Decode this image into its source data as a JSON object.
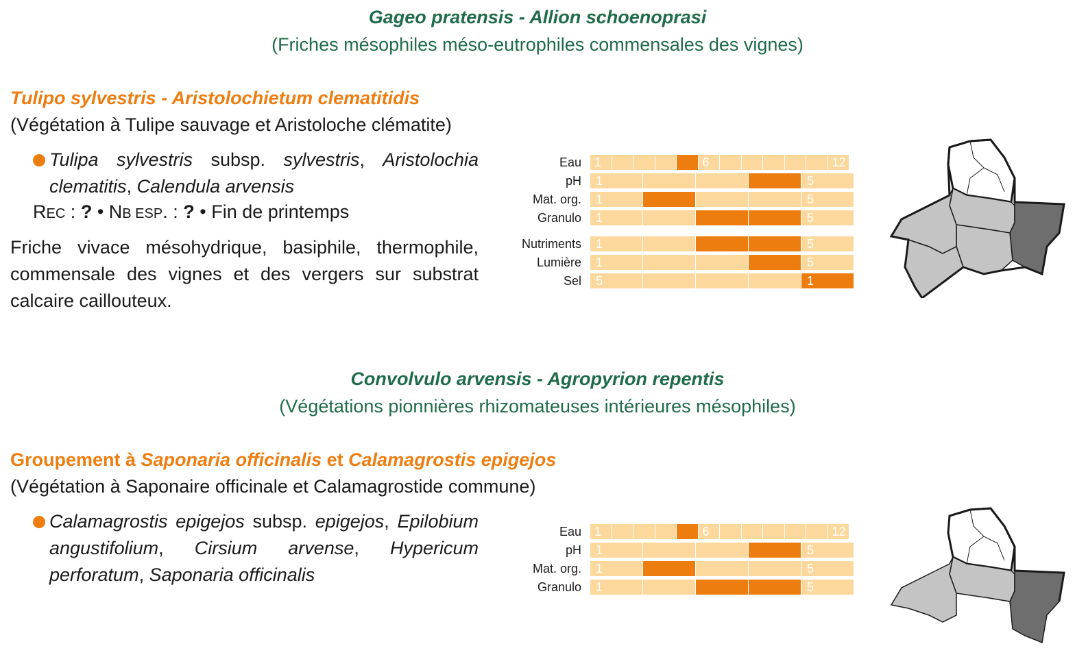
{
  "blocks": [
    {
      "alliance": {
        "title": "Gageo pratensis - Allion schoenoprasi",
        "subtitle": "(Friches mésophiles méso-eutrophiles commensales des vignes)"
      },
      "association": {
        "title_plain_prefix": "",
        "title_parts": [
          "Tulipo sylvestris - Aristolochietum clematitidis"
        ],
        "subtitle": "(Végétation à Tulipe sauvage et Aristoloche clématite)",
        "species": [
          {
            "text": "Tulipa sylvestris",
            "italic": true
          },
          {
            "text": " subsp. ",
            "italic": false
          },
          {
            "text": "sylvestris",
            "italic": true
          },
          {
            "text": ", ",
            "italic": false
          },
          {
            "text": "Aristolochia clematitis",
            "italic": true
          },
          {
            "text": ", ",
            "italic": false
          },
          {
            "text": "Calendula arvensis",
            "italic": true
          }
        ],
        "meta": {
          "rec_label": "Rec",
          "rec_value": "?",
          "nb_label": "Nb esp.",
          "nb_value": "?",
          "season": "Fin de printemps"
        },
        "description": "Friche vivace mésohydrique, basiphile, thermophile, commensale des vignes et des vergers sur substrat calcaire caillouteux."
      },
      "indicators": [
        {
          "label": "Eau",
          "scale": 12,
          "active": [
            5
          ],
          "first_label": "1",
          "mid_label": "6",
          "last_label": "12"
        },
        {
          "label": "pH",
          "scale": 5,
          "active": [
            4
          ],
          "first_label": "1",
          "last_label": "5"
        },
        {
          "label": "Mat. org.",
          "scale": 5,
          "active": [
            2
          ],
          "first_label": "1",
          "last_label": "5"
        },
        {
          "label": "Granulo",
          "scale": 5,
          "active": [
            3,
            4
          ],
          "first_label": "1",
          "last_label": "5"
        },
        {
          "label": "Nutriments",
          "scale": 5,
          "active": [
            3,
            4
          ],
          "first_label": "1",
          "last_label": "5"
        },
        {
          "label": "Lumière",
          "scale": 5,
          "active": [
            4
          ],
          "first_label": "1",
          "last_label": "5"
        },
        {
          "label": "Sel",
          "scale": 5,
          "active": [
            5
          ],
          "first_label": "5",
          "last_label": "1"
        }
      ],
      "map": {
        "highlight_color": "#6e6e6e",
        "present_color": "#c4c4c4",
        "absent_color": "#ffffff"
      }
    },
    {
      "alliance": {
        "title": "Convolvulo arvensis - Agropyrion repentis",
        "subtitle": "(Végétations pionnières rhizomateuses intérieures mésophiles)"
      },
      "association": {
        "title_segments": [
          {
            "text": "Groupement à ",
            "italic": false
          },
          {
            "text": "Saponaria officinalis",
            "italic": true
          },
          {
            "text": " et ",
            "italic": false
          },
          {
            "text": "Calamagrostis epigejos",
            "italic": true
          }
        ],
        "subtitle": "(Végétation à Saponaire officinale et Calamagrostide commune)",
        "species": [
          {
            "text": "Calamagrostis epigejos",
            "italic": true
          },
          {
            "text": " subsp. ",
            "italic": false
          },
          {
            "text": "epigejos",
            "italic": true
          },
          {
            "text": ", ",
            "italic": false
          },
          {
            "text": "Epilobium angustifolium",
            "italic": true
          },
          {
            "text": ", ",
            "italic": false
          },
          {
            "text": "Cirsium arvense",
            "italic": true
          },
          {
            "text": ", ",
            "italic": false
          },
          {
            "text": "Hypericum perforatum",
            "italic": true
          },
          {
            "text": ", ",
            "italic": false
          },
          {
            "text": "Saponaria officinalis",
            "italic": true
          }
        ]
      },
      "indicators": [
        {
          "label": "Eau",
          "scale": 12,
          "active": [
            5
          ],
          "first_label": "1",
          "mid_label": "6",
          "last_label": "12"
        },
        {
          "label": "pH",
          "scale": 5,
          "active": [
            4
          ],
          "first_label": "1",
          "last_label": "5"
        },
        {
          "label": "Mat. org.",
          "scale": 5,
          "active": [
            2
          ],
          "first_label": "1",
          "last_label": "5"
        },
        {
          "label": "Granulo",
          "scale": 5,
          "active": [
            3,
            4
          ],
          "first_label": "1",
          "last_label": "5"
        }
      ]
    }
  ]
}
